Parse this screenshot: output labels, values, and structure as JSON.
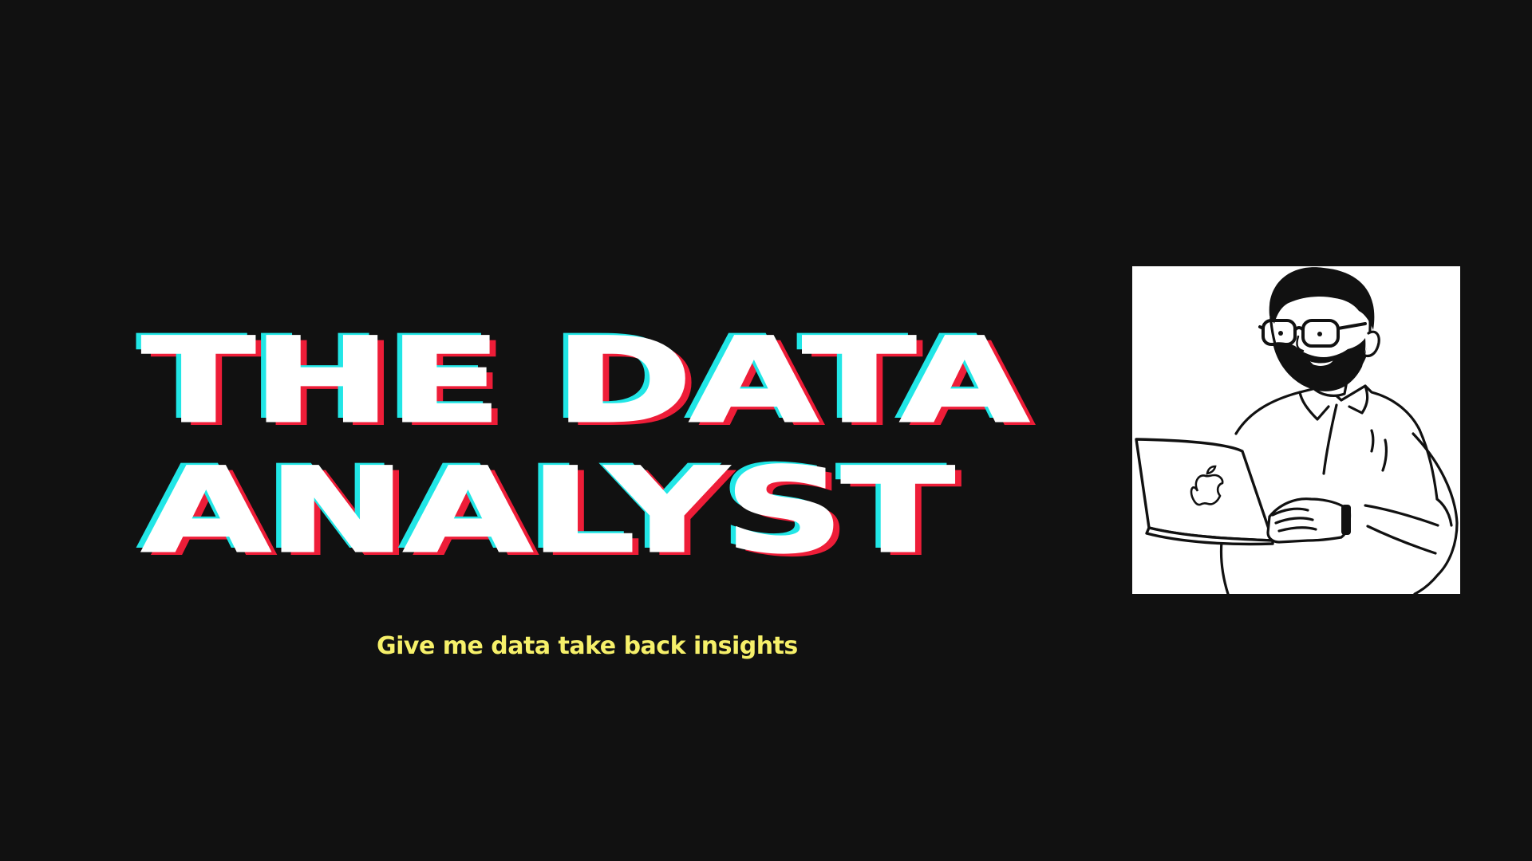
{
  "title": {
    "line1": "THE DATA",
    "line2": "ANALYST"
  },
  "tagline": "Give me data take back insights",
  "illustration": {
    "icon": "data-analyst-with-laptop-illustration",
    "laptop_logo_icon": "apple-logo-icon"
  },
  "colors": {
    "background": "#111111",
    "title_fill": "#ffffff",
    "title_shadow_cyan": "#21e6e6",
    "title_shadow_red": "#ee1d38",
    "tagline": "#f6f06a"
  }
}
